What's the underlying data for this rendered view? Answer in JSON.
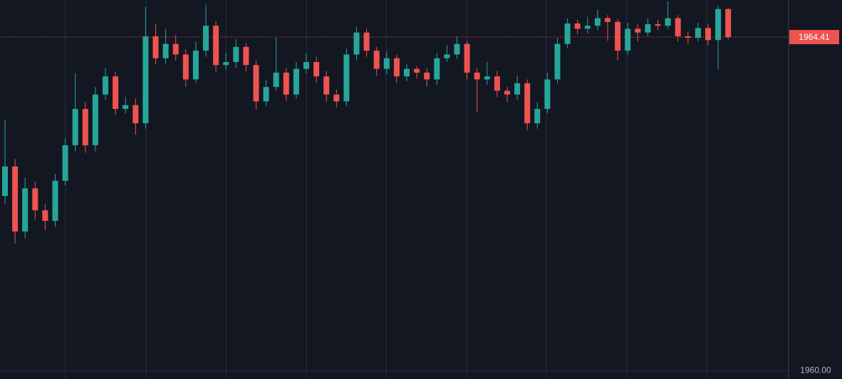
{
  "chart_data": {
    "type": "candlestick",
    "up_color": "#26a69a",
    "down_color": "#ef5350",
    "ylim": [
      1959.89,
      1964.9
    ],
    "yticks": [
      {
        "value": 1960,
        "label": "1960.00"
      }
    ],
    "last_price": {
      "value": 1964.41,
      "label": "1964.41"
    },
    "ohlc": [
      [
        1962.31,
        1963.32,
        1962.2,
        1962.7
      ],
      [
        1962.7,
        1962.8,
        1961.68,
        1961.84
      ],
      [
        1961.84,
        1962.55,
        1961.75,
        1962.41
      ],
      [
        1962.41,
        1962.5,
        1962.0,
        1962.12
      ],
      [
        1962.12,
        1962.2,
        1961.86,
        1961.98
      ],
      [
        1961.98,
        1962.6,
        1961.9,
        1962.51
      ],
      [
        1962.51,
        1963.08,
        1962.45,
        1962.98
      ],
      [
        1962.98,
        1963.93,
        1962.9,
        1963.46
      ],
      [
        1963.46,
        1963.55,
        1962.88,
        1962.98
      ],
      [
        1962.98,
        1963.75,
        1962.9,
        1963.65
      ],
      [
        1963.65,
        1964.0,
        1963.58,
        1963.89
      ],
      [
        1963.89,
        1963.95,
        1963.38,
        1963.46
      ],
      [
        1963.46,
        1963.62,
        1963.4,
        1963.51
      ],
      [
        1963.51,
        1963.6,
        1963.12,
        1963.27
      ],
      [
        1963.27,
        1964.81,
        1963.2,
        1964.42
      ],
      [
        1964.42,
        1964.58,
        1964.05,
        1964.13
      ],
      [
        1964.13,
        1964.52,
        1964.06,
        1964.32
      ],
      [
        1964.32,
        1964.44,
        1964.1,
        1964.18
      ],
      [
        1964.18,
        1964.25,
        1963.75,
        1963.85
      ],
      [
        1963.85,
        1964.35,
        1963.8,
        1964.23
      ],
      [
        1964.23,
        1964.84,
        1964.15,
        1964.56
      ],
      [
        1964.56,
        1964.62,
        1963.95,
        1964.04
      ],
      [
        1964.04,
        1964.2,
        1963.98,
        1964.08
      ],
      [
        1964.08,
        1964.38,
        1964.0,
        1964.28
      ],
      [
        1964.28,
        1964.33,
        1963.96,
        1964.04
      ],
      [
        1964.04,
        1964.1,
        1963.45,
        1963.56
      ],
      [
        1963.56,
        1963.85,
        1963.5,
        1963.75
      ],
      [
        1963.75,
        1964.4,
        1963.7,
        1963.94
      ],
      [
        1963.94,
        1964.0,
        1963.57,
        1963.65
      ],
      [
        1963.65,
        1964.08,
        1963.6,
        1963.99
      ],
      [
        1963.99,
        1964.2,
        1963.93,
        1964.08
      ],
      [
        1964.08,
        1964.15,
        1963.8,
        1963.89
      ],
      [
        1963.89,
        1963.96,
        1963.55,
        1963.65
      ],
      [
        1963.65,
        1963.72,
        1963.48,
        1963.56
      ],
      [
        1963.56,
        1964.26,
        1963.5,
        1964.18
      ],
      [
        1964.18,
        1964.55,
        1964.1,
        1964.47
      ],
      [
        1964.47,
        1964.52,
        1964.15,
        1964.23
      ],
      [
        1964.23,
        1964.28,
        1963.9,
        1963.99
      ],
      [
        1963.99,
        1964.22,
        1963.92,
        1964.13
      ],
      [
        1964.13,
        1964.18,
        1963.8,
        1963.89
      ],
      [
        1963.89,
        1964.05,
        1963.83,
        1963.99
      ],
      [
        1963.99,
        1964.03,
        1963.86,
        1963.94
      ],
      [
        1963.94,
        1964.0,
        1963.75,
        1963.85
      ],
      [
        1963.85,
        1964.2,
        1963.78,
        1964.13
      ],
      [
        1964.13,
        1964.3,
        1964.08,
        1964.18
      ],
      [
        1964.18,
        1964.42,
        1964.12,
        1964.32
      ],
      [
        1964.32,
        1964.36,
        1963.85,
        1963.94
      ],
      [
        1963.94,
        1964.0,
        1963.42,
        1963.85
      ],
      [
        1963.85,
        1964.08,
        1963.78,
        1963.89
      ],
      [
        1963.89,
        1963.96,
        1963.62,
        1963.7
      ],
      [
        1963.7,
        1963.75,
        1963.55,
        1963.65
      ],
      [
        1963.65,
        1963.9,
        1963.58,
        1963.8
      ],
      [
        1963.8,
        1963.85,
        1963.18,
        1963.27
      ],
      [
        1963.27,
        1963.55,
        1963.2,
        1963.46
      ],
      [
        1963.46,
        1963.94,
        1963.4,
        1963.85
      ],
      [
        1963.85,
        1964.4,
        1963.8,
        1964.32
      ],
      [
        1964.32,
        1964.66,
        1964.26,
        1964.59
      ],
      [
        1964.59,
        1964.64,
        1964.45,
        1964.52
      ],
      [
        1964.52,
        1964.68,
        1964.46,
        1964.56
      ],
      [
        1964.56,
        1964.77,
        1964.5,
        1964.66
      ],
      [
        1964.66,
        1964.7,
        1964.36,
        1964.61
      ],
      [
        1964.61,
        1964.65,
        1964.1,
        1964.23
      ],
      [
        1964.23,
        1964.6,
        1964.18,
        1964.52
      ],
      [
        1964.52,
        1964.58,
        1964.35,
        1964.47
      ],
      [
        1964.47,
        1964.66,
        1964.42,
        1964.58
      ],
      [
        1964.58,
        1964.64,
        1964.5,
        1964.56
      ],
      [
        1964.56,
        1964.88,
        1964.52,
        1964.66
      ],
      [
        1964.66,
        1964.7,
        1964.35,
        1964.42
      ],
      [
        1964.42,
        1964.48,
        1964.32,
        1964.4
      ],
      [
        1964.4,
        1964.6,
        1964.35,
        1964.53
      ],
      [
        1964.53,
        1964.58,
        1964.3,
        1964.37
      ],
      [
        1964.37,
        1964.82,
        1963.98,
        1964.78
      ],
      [
        1964.78,
        1964.8,
        1964.38,
        1964.41
      ]
    ]
  }
}
